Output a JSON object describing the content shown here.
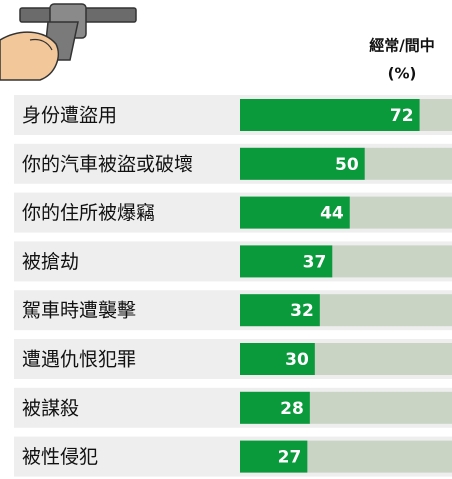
{
  "chart_data": {
    "type": "bar",
    "orientation": "horizontal",
    "header": [
      "經常/間中",
      "(%)"
    ],
    "categories": [
      "身份遭盜用",
      "你的汽車被盜或破壞",
      "你的住所被爆竊",
      "被搶劫",
      "駕車時遭襲擊",
      "遭遇仇恨犯罪",
      "被謀殺",
      "被性侵犯"
    ],
    "values": [
      72,
      50,
      44,
      37,
      32,
      30,
      28,
      27
    ],
    "color": "#0a9a3c",
    "track_color": "#c9d4c5",
    "xlim": [
      0,
      85
    ]
  }
}
